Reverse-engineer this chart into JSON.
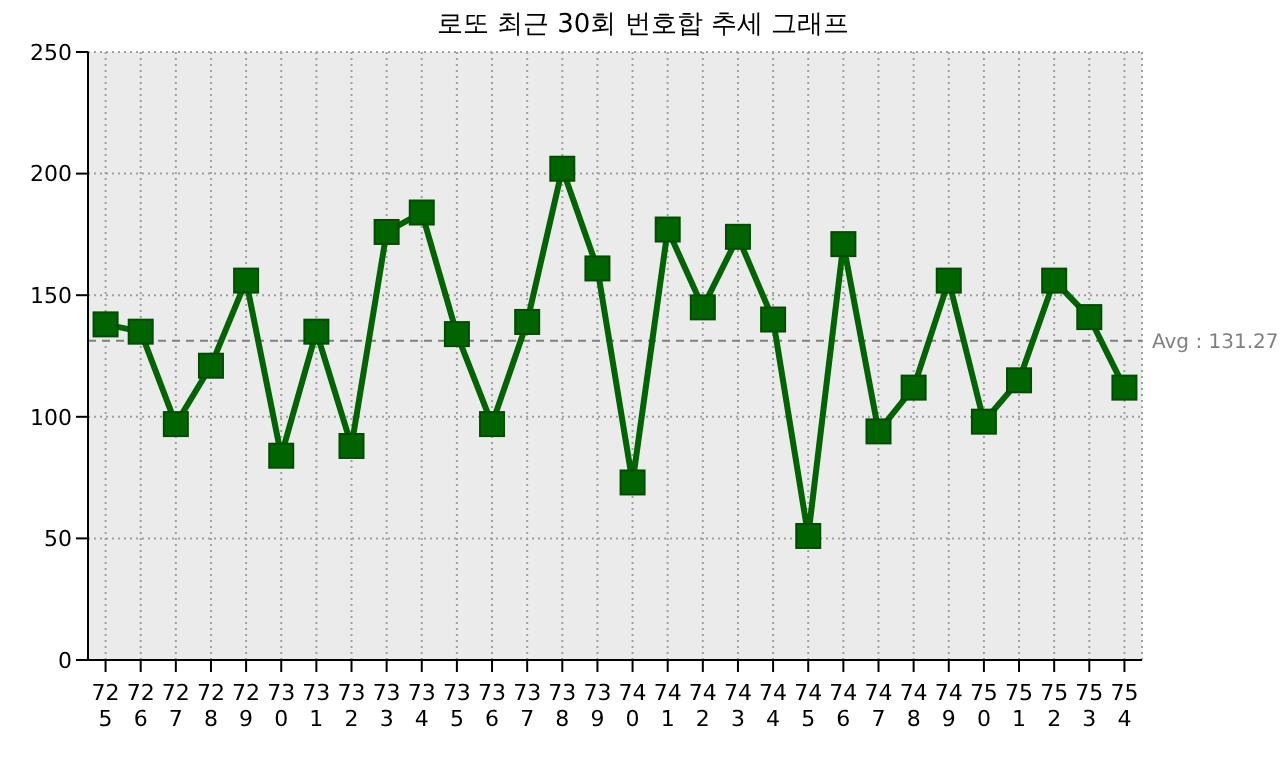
{
  "chart_data": {
    "type": "line",
    "title": "로또 최근 30회 번호합 추세 그래프",
    "categories": [
      "725",
      "726",
      "727",
      "728",
      "729",
      "730",
      "731",
      "732",
      "733",
      "734",
      "735",
      "736",
      "737",
      "738",
      "739",
      "740",
      "741",
      "742",
      "743",
      "744",
      "745",
      "746",
      "747",
      "748",
      "749",
      "750",
      "751",
      "752",
      "753",
      "754"
    ],
    "series": [
      {
        "color": "#006400",
        "values": [
          138,
          135,
          97,
          121,
          156,
          84,
          135,
          88,
          176,
          184,
          134,
          97,
          139,
          202,
          161,
          73,
          177,
          145,
          174,
          140,
          51,
          171,
          94,
          112,
          156,
          98,
          115,
          156,
          141,
          112
        ]
      }
    ],
    "ylim": [
      0,
      250
    ],
    "yticks": [
      0,
      50,
      100,
      150,
      200,
      250
    ],
    "grid": true,
    "marker": "square",
    "line_style": "solid",
    "ref_lines": [
      {
        "axis": "y",
        "value": 131.27,
        "label": "Avg : 131.27",
        "color": "#808080",
        "line_style": "dashed"
      }
    ]
  }
}
